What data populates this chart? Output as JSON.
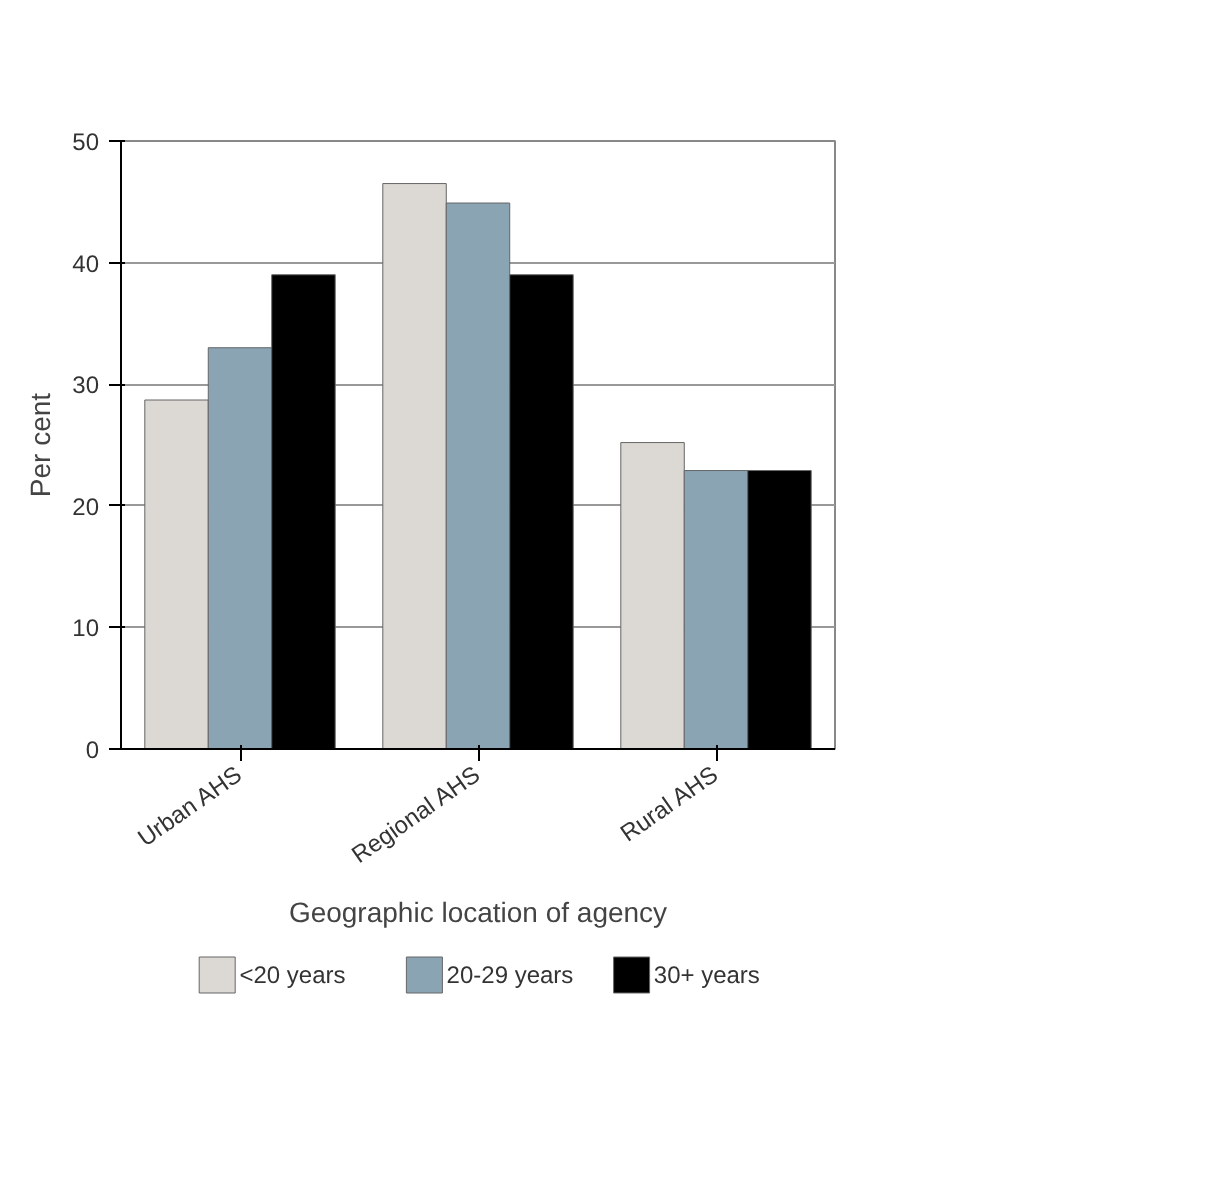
{
  "chart_data": {
    "type": "bar",
    "xlabel": "Geographic location of agency",
    "ylabel": "Per cent",
    "categories": [
      "Urban AHS",
      "Regional AHS",
      "Rural AHS"
    ],
    "series": [
      {
        "name": "<20 years",
        "color": "#dcd8d4",
        "values": [
          28.7,
          46.5,
          25.2
        ]
      },
      {
        "name": "20-29 years",
        "color": "#8aa4b4",
        "values": [
          33,
          44.9,
          22.9
        ]
      },
      {
        "name": "30+ years",
        "color": "#000000",
        "values": [
          39,
          39,
          22.9
        ]
      }
    ],
    "ylim": [
      0,
      50
    ],
    "yticks": [
      0,
      10,
      20,
      30,
      40,
      50
    ],
    "grid": "y",
    "legend": "bottom"
  }
}
